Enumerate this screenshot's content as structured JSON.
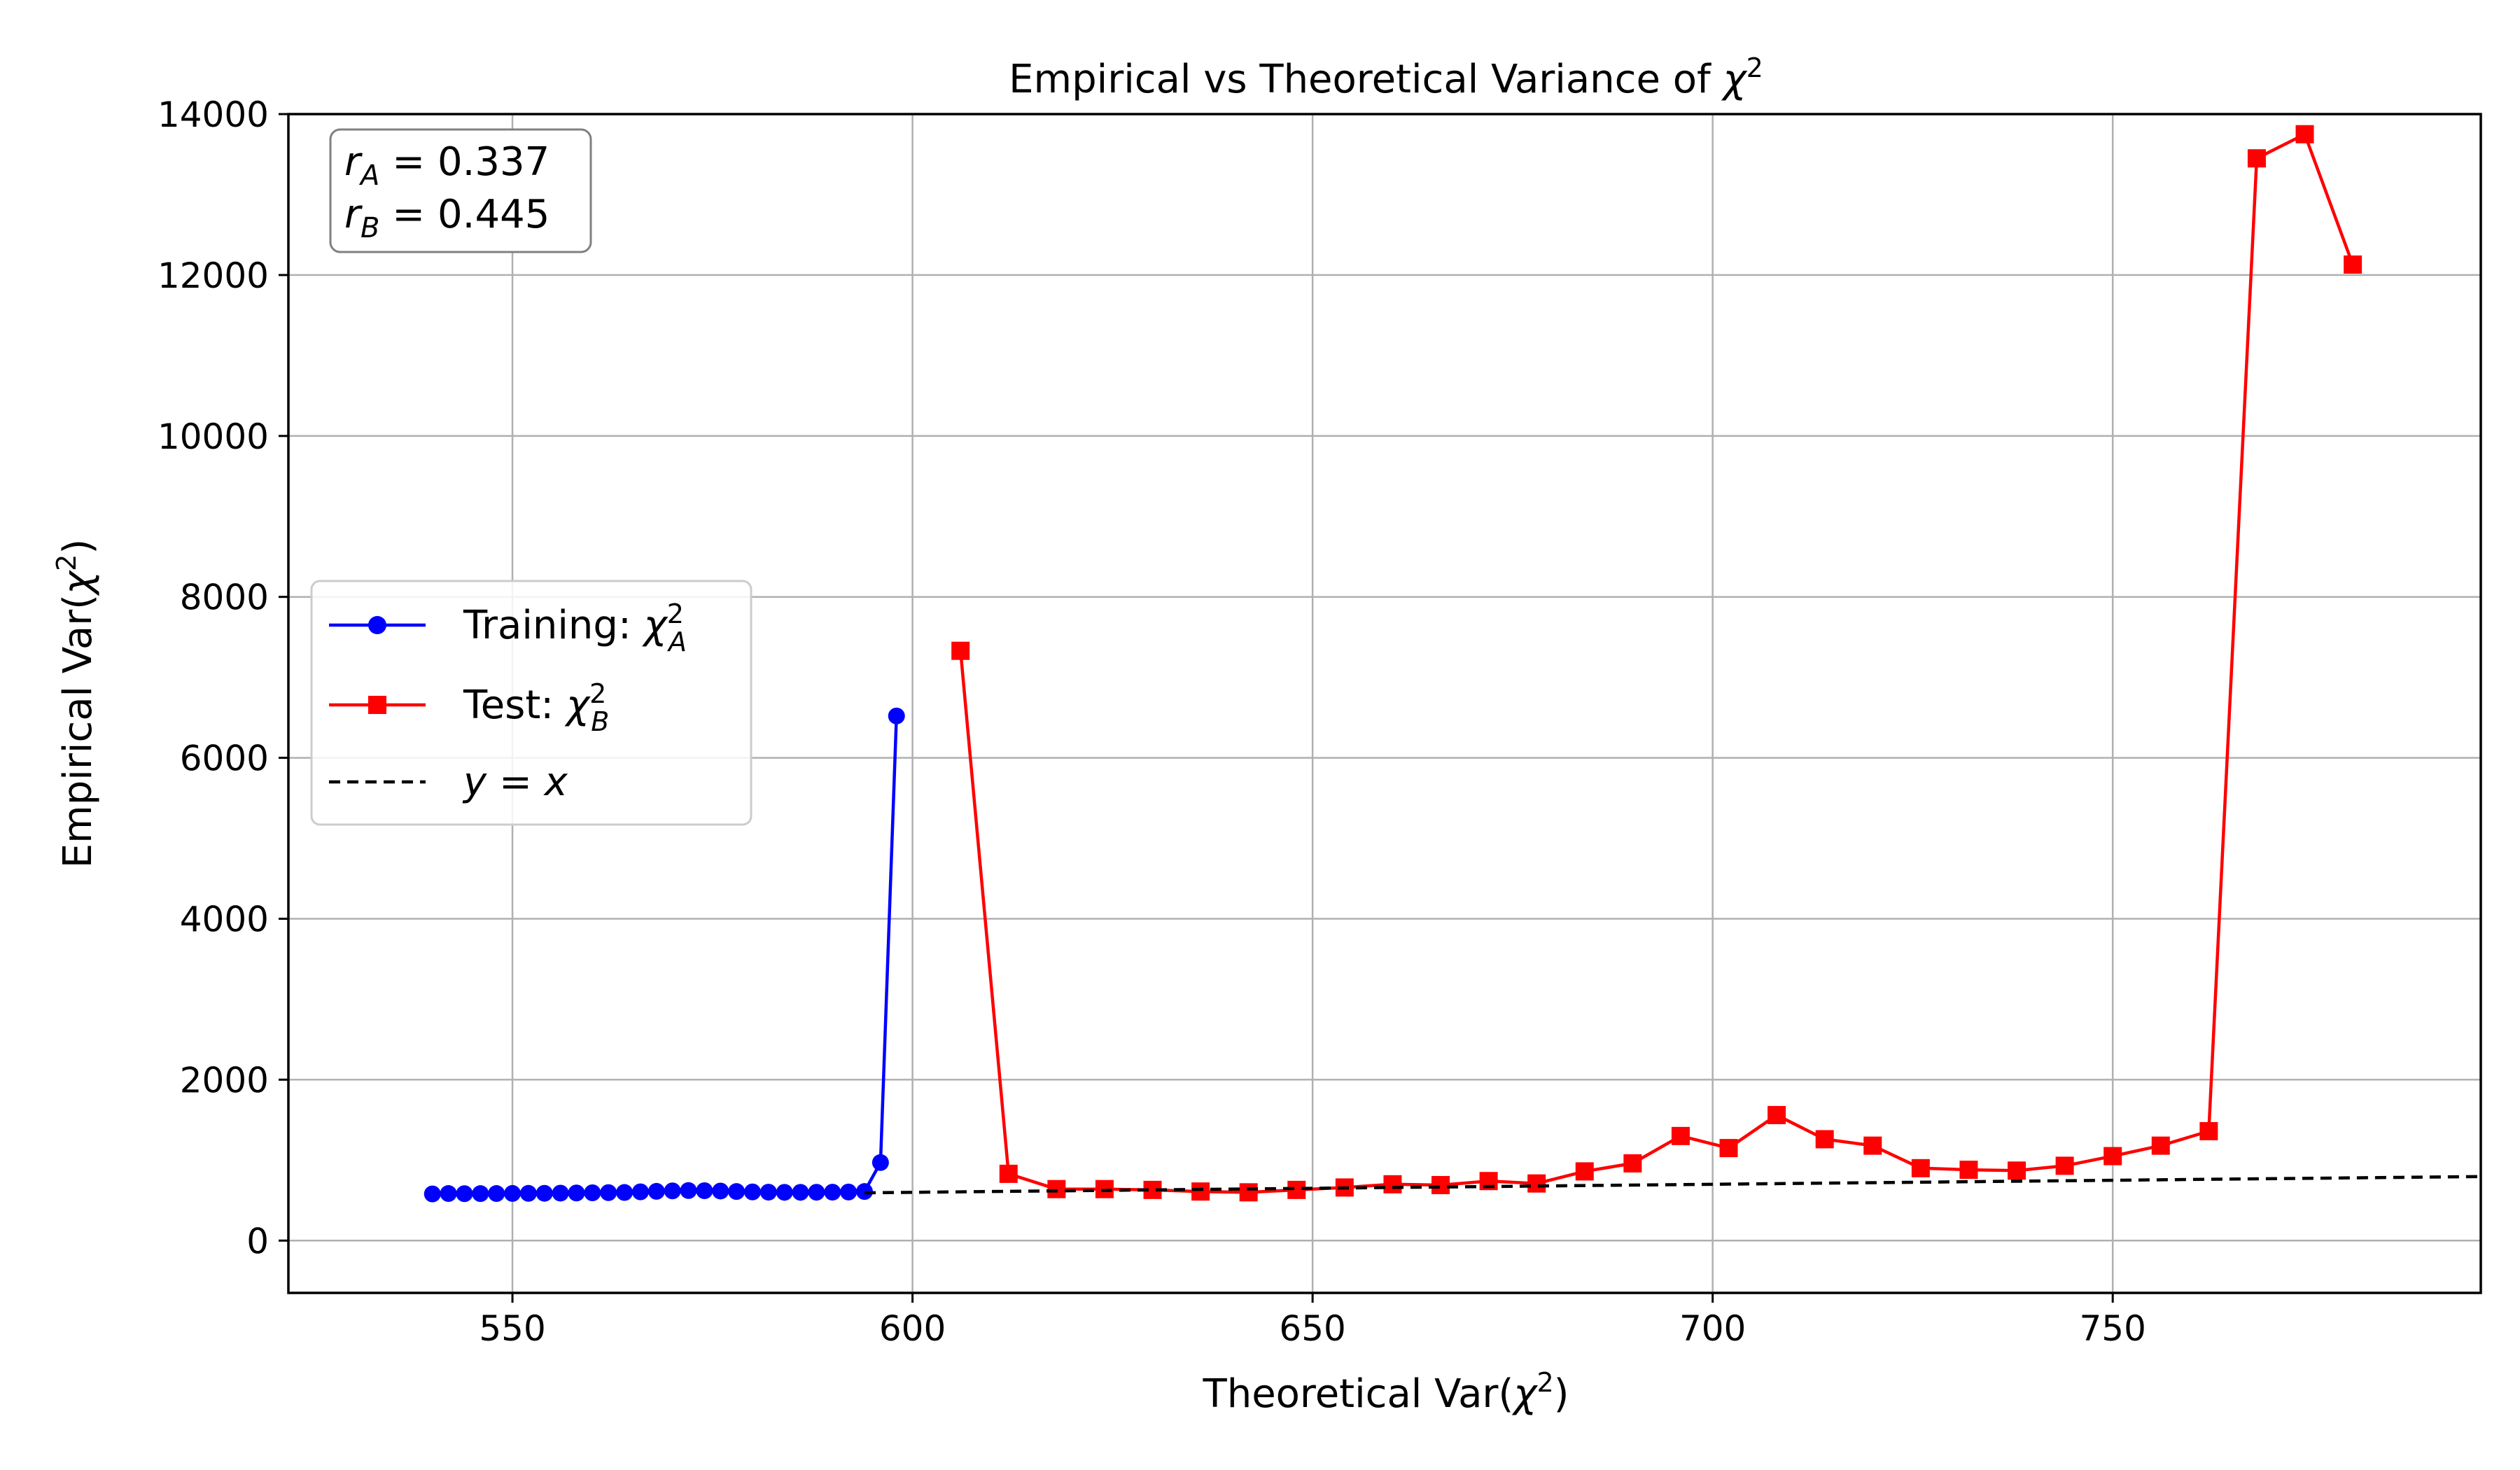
{
  "chart_data": {
    "type": "line",
    "title_text": "Empirical vs Theoretical Variance of ",
    "title_symbol": "χ",
    "title_sup": "2",
    "xlabel_text": "Theoretical Var(",
    "ylabel_text": "Empirical Var(",
    "label_symbol": "χ",
    "label_sup": "2",
    "label_close": ")",
    "xlim": [
      522,
      796
    ],
    "ylim": [
      -650,
      14000
    ],
    "xticks": [
      550,
      600,
      650,
      700,
      750
    ],
    "yticks": [
      0,
      2000,
      4000,
      6000,
      8000,
      10000,
      12000,
      14000
    ],
    "grid": true,
    "legend_position": "center-left",
    "colors": {
      "train": "#0000ff",
      "test": "#ff0000",
      "ref": "#000000"
    },
    "annotation": {
      "r_symbol": "r",
      "eq": " = ",
      "a_sub": "A",
      "a_value": "0.337",
      "b_sub": "B",
      "b_value": "0.445"
    },
    "legend": {
      "train_label": "Training: ",
      "train_sub": "A",
      "test_label": "Test: ",
      "test_sub": "B",
      "chi": "χ",
      "sup": "2",
      "ref_label": "y = x"
    },
    "series": [
      {
        "key": "train",
        "marker": "circle",
        "x": [
          540,
          542,
          544,
          546,
          548,
          550,
          552,
          554,
          556,
          558,
          560,
          562,
          564,
          566,
          568,
          570,
          572,
          574,
          576,
          578,
          580,
          582,
          584,
          586,
          588,
          590,
          592,
          594,
          596,
          598
        ],
        "y": [
          580,
          585,
          583,
          584,
          585,
          586,
          587,
          588,
          590,
          592,
          594,
          596,
          598,
          606,
          612,
          618,
          622,
          620,
          616,
          610,
          605,
          602,
          600,
          600,
          601,
          602,
          604,
          610,
          970,
          6520
        ]
      },
      {
        "key": "test",
        "marker": "square",
        "x": [
          606,
          612,
          618,
          624,
          630,
          636,
          642,
          648,
          654,
          660,
          666,
          672,
          678,
          684,
          690,
          696,
          702,
          708,
          714,
          720,
          726,
          732,
          738,
          744,
          750,
          756,
          762,
          768,
          774,
          780
        ],
        "y": [
          7330,
          830,
          640,
          640,
          630,
          610,
          600,
          630,
          660,
          700,
          690,
          740,
          710,
          860,
          960,
          1300,
          1150,
          1560,
          1260,
          1180,
          900,
          880,
          870,
          930,
          1050,
          1180,
          1360,
          13450,
          13750,
          12130
        ]
      },
      {
        "key": "ref",
        "style": "dashed",
        "x": [
          594,
          796
        ],
        "y": [
          594,
          796
        ]
      }
    ]
  }
}
